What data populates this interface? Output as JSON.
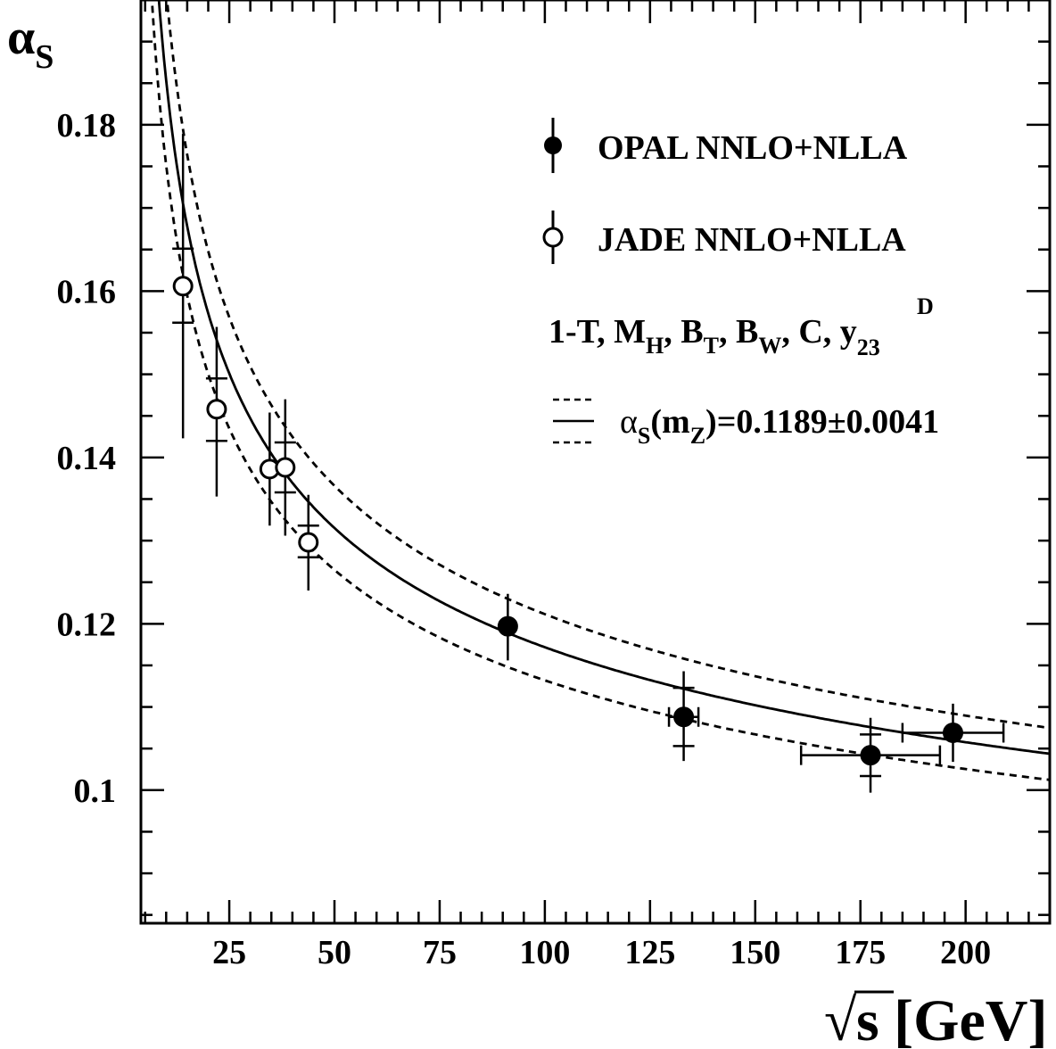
{
  "chart_data": {
    "type": "scatter",
    "title": "",
    "xlabel": "√s [GeV]",
    "xlabel_sqrt": "√",
    "xlabel_rest": "s [GeV]",
    "ylabel": "α",
    "ylabel_sub": "S",
    "xlim": [
      4,
      220
    ],
    "ylim": [
      0.084,
      0.195
    ],
    "x_ticks": [
      25,
      50,
      75,
      100,
      125,
      150,
      175,
      200
    ],
    "y_ticks": [
      0.1,
      0.12,
      0.14,
      0.16,
      0.18
    ],
    "y_tick_labels": [
      "0.1",
      "0.12",
      "0.14",
      "0.16",
      "0.18"
    ],
    "grid": false,
    "legend_position": "top-right",
    "legend": {
      "opal": "OPAL NNLO+NLLA",
      "jade": "JADE NNLO+NLLA",
      "observables": {
        "text_a": "1-T, M",
        "sub_a": "H",
        "text_b": ", B",
        "sub_b": "T",
        "text_c": ", B",
        "sub_c": "W",
        "text_d": ", C, y",
        "sub_d": "23",
        "sup_d": "D"
      },
      "fit": {
        "alpha": "α",
        "sub_s": "S",
        "paren_open": "(m",
        "sub_z": "Z",
        "value": ")=0.1189±0.0041"
      }
    },
    "fit": {
      "alpha_s_mz": 0.1189,
      "uncertainty": 0.0041,
      "mz": 91.19
    },
    "series": [
      {
        "name": "OPAL NNLO+NLLA",
        "marker": "filled",
        "points": [
          {
            "x": 91.2,
            "y": 0.1197,
            "xerr": 0,
            "y_stat_lo": 0.1197,
            "y_stat_hi": 0.1197,
            "y_tot_lo": 0.1156,
            "y_tot_hi": 0.1236
          },
          {
            "x": 133.0,
            "y": 0.1088,
            "xerr": 3.5,
            "y_stat_lo": 0.1053,
            "y_stat_hi": 0.1123,
            "y_tot_lo": 0.1035,
            "y_tot_hi": 0.1143
          },
          {
            "x": 177.4,
            "y": 0.1042,
            "xerr": 16.5,
            "y_stat_lo": 0.1017,
            "y_stat_hi": 0.1067,
            "y_tot_lo": 0.0997,
            "y_tot_hi": 0.1087
          },
          {
            "x": 197.0,
            "y": 0.1069,
            "xerr": 12.0,
            "y_stat_lo": 0.1069,
            "y_stat_hi": 0.1069,
            "y_tot_lo": 0.1034,
            "y_tot_hi": 0.1104
          }
        ]
      },
      {
        "name": "JADE NNLO+NLLA",
        "marker": "open",
        "points": [
          {
            "x": 14.0,
            "y": 0.1606,
            "xerr": 0,
            "y_stat_lo": 0.1562,
            "y_stat_hi": 0.1651,
            "y_tot_lo": 0.1423,
            "y_tot_hi": 0.1789
          },
          {
            "x": 22.0,
            "y": 0.1458,
            "xerr": 0,
            "y_stat_lo": 0.142,
            "y_stat_hi": 0.1495,
            "y_tot_lo": 0.1353,
            "y_tot_hi": 0.1557
          },
          {
            "x": 34.6,
            "y": 0.1386,
            "xerr": 0,
            "y_stat_lo": 0.1386,
            "y_stat_hi": 0.1386,
            "y_tot_lo": 0.1318,
            "y_tot_hi": 0.1454
          },
          {
            "x": 38.3,
            "y": 0.1388,
            "xerr": 0,
            "y_stat_lo": 0.1358,
            "y_stat_hi": 0.1418,
            "y_tot_lo": 0.1306,
            "y_tot_hi": 0.147
          },
          {
            "x": 43.8,
            "y": 0.1298,
            "xerr": 0,
            "y_stat_lo": 0.128,
            "y_stat_hi": 0.1318,
            "y_tot_lo": 0.124,
            "y_tot_hi": 0.1355
          }
        ]
      }
    ]
  }
}
